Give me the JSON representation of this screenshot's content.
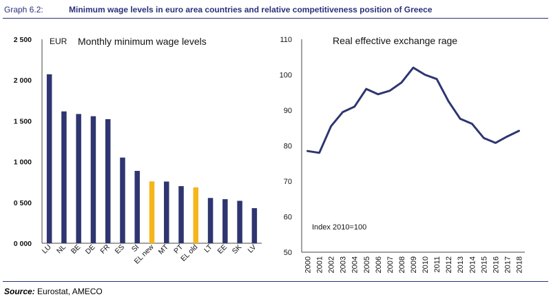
{
  "header": {
    "graph_label": "Graph 6.2:",
    "title": "Minimum wage levels in euro area countries and relative competitiveness position of Greece"
  },
  "footer": {
    "source_label": "Source:",
    "source_text": "Eurostat, AMECO"
  },
  "colors": {
    "bar": "#2e3571",
    "highlight": "#f5b51b",
    "line": "#2e3571",
    "accent": "#2b2f7a"
  },
  "chart_data": [
    {
      "type": "bar",
      "title": "Monthly minimum  wage levels",
      "unit_label": "EUR",
      "categories": [
        "LU",
        "NL",
        "BE",
        "DE",
        "FR",
        "ES",
        "SI",
        "EL new",
        "MT",
        "PT",
        "EL old",
        "LT",
        "EE",
        "SK",
        "LV"
      ],
      "values": [
        2071,
        1616,
        1584,
        1557,
        1521,
        1050,
        887,
        758,
        756,
        700,
        684,
        555,
        540,
        520,
        430
      ],
      "highlighted": [
        "EL new",
        "EL old"
      ],
      "y_ticks": [
        "0 000",
        "0 500",
        "1 000",
        "1 500",
        "2 000",
        "2 500"
      ],
      "ylim": [
        0,
        2500
      ],
      "grid": false
    },
    {
      "type": "line",
      "title": "Real effective exchange rage",
      "annotation": "Index 2010=100",
      "x": [
        "2000",
        "2001",
        "2002",
        "2003",
        "2004",
        "2005",
        "2006",
        "2007",
        "2008",
        "2009",
        "2010",
        "2011",
        "2012",
        "2013",
        "2014",
        "2015",
        "2016",
        "2017",
        "2018"
      ],
      "y": [
        78.5,
        78.0,
        85.5,
        89.5,
        91.0,
        96.0,
        94.5,
        95.5,
        97.8,
        102.0,
        100.0,
        98.8,
        92.5,
        87.6,
        86.2,
        82.2,
        80.8,
        82.6,
        84.2
      ],
      "y_ticks": [
        "50",
        "60",
        "70",
        "80",
        "90",
        "100",
        "110"
      ],
      "ylim": [
        50,
        110
      ],
      "grid": false
    }
  ]
}
